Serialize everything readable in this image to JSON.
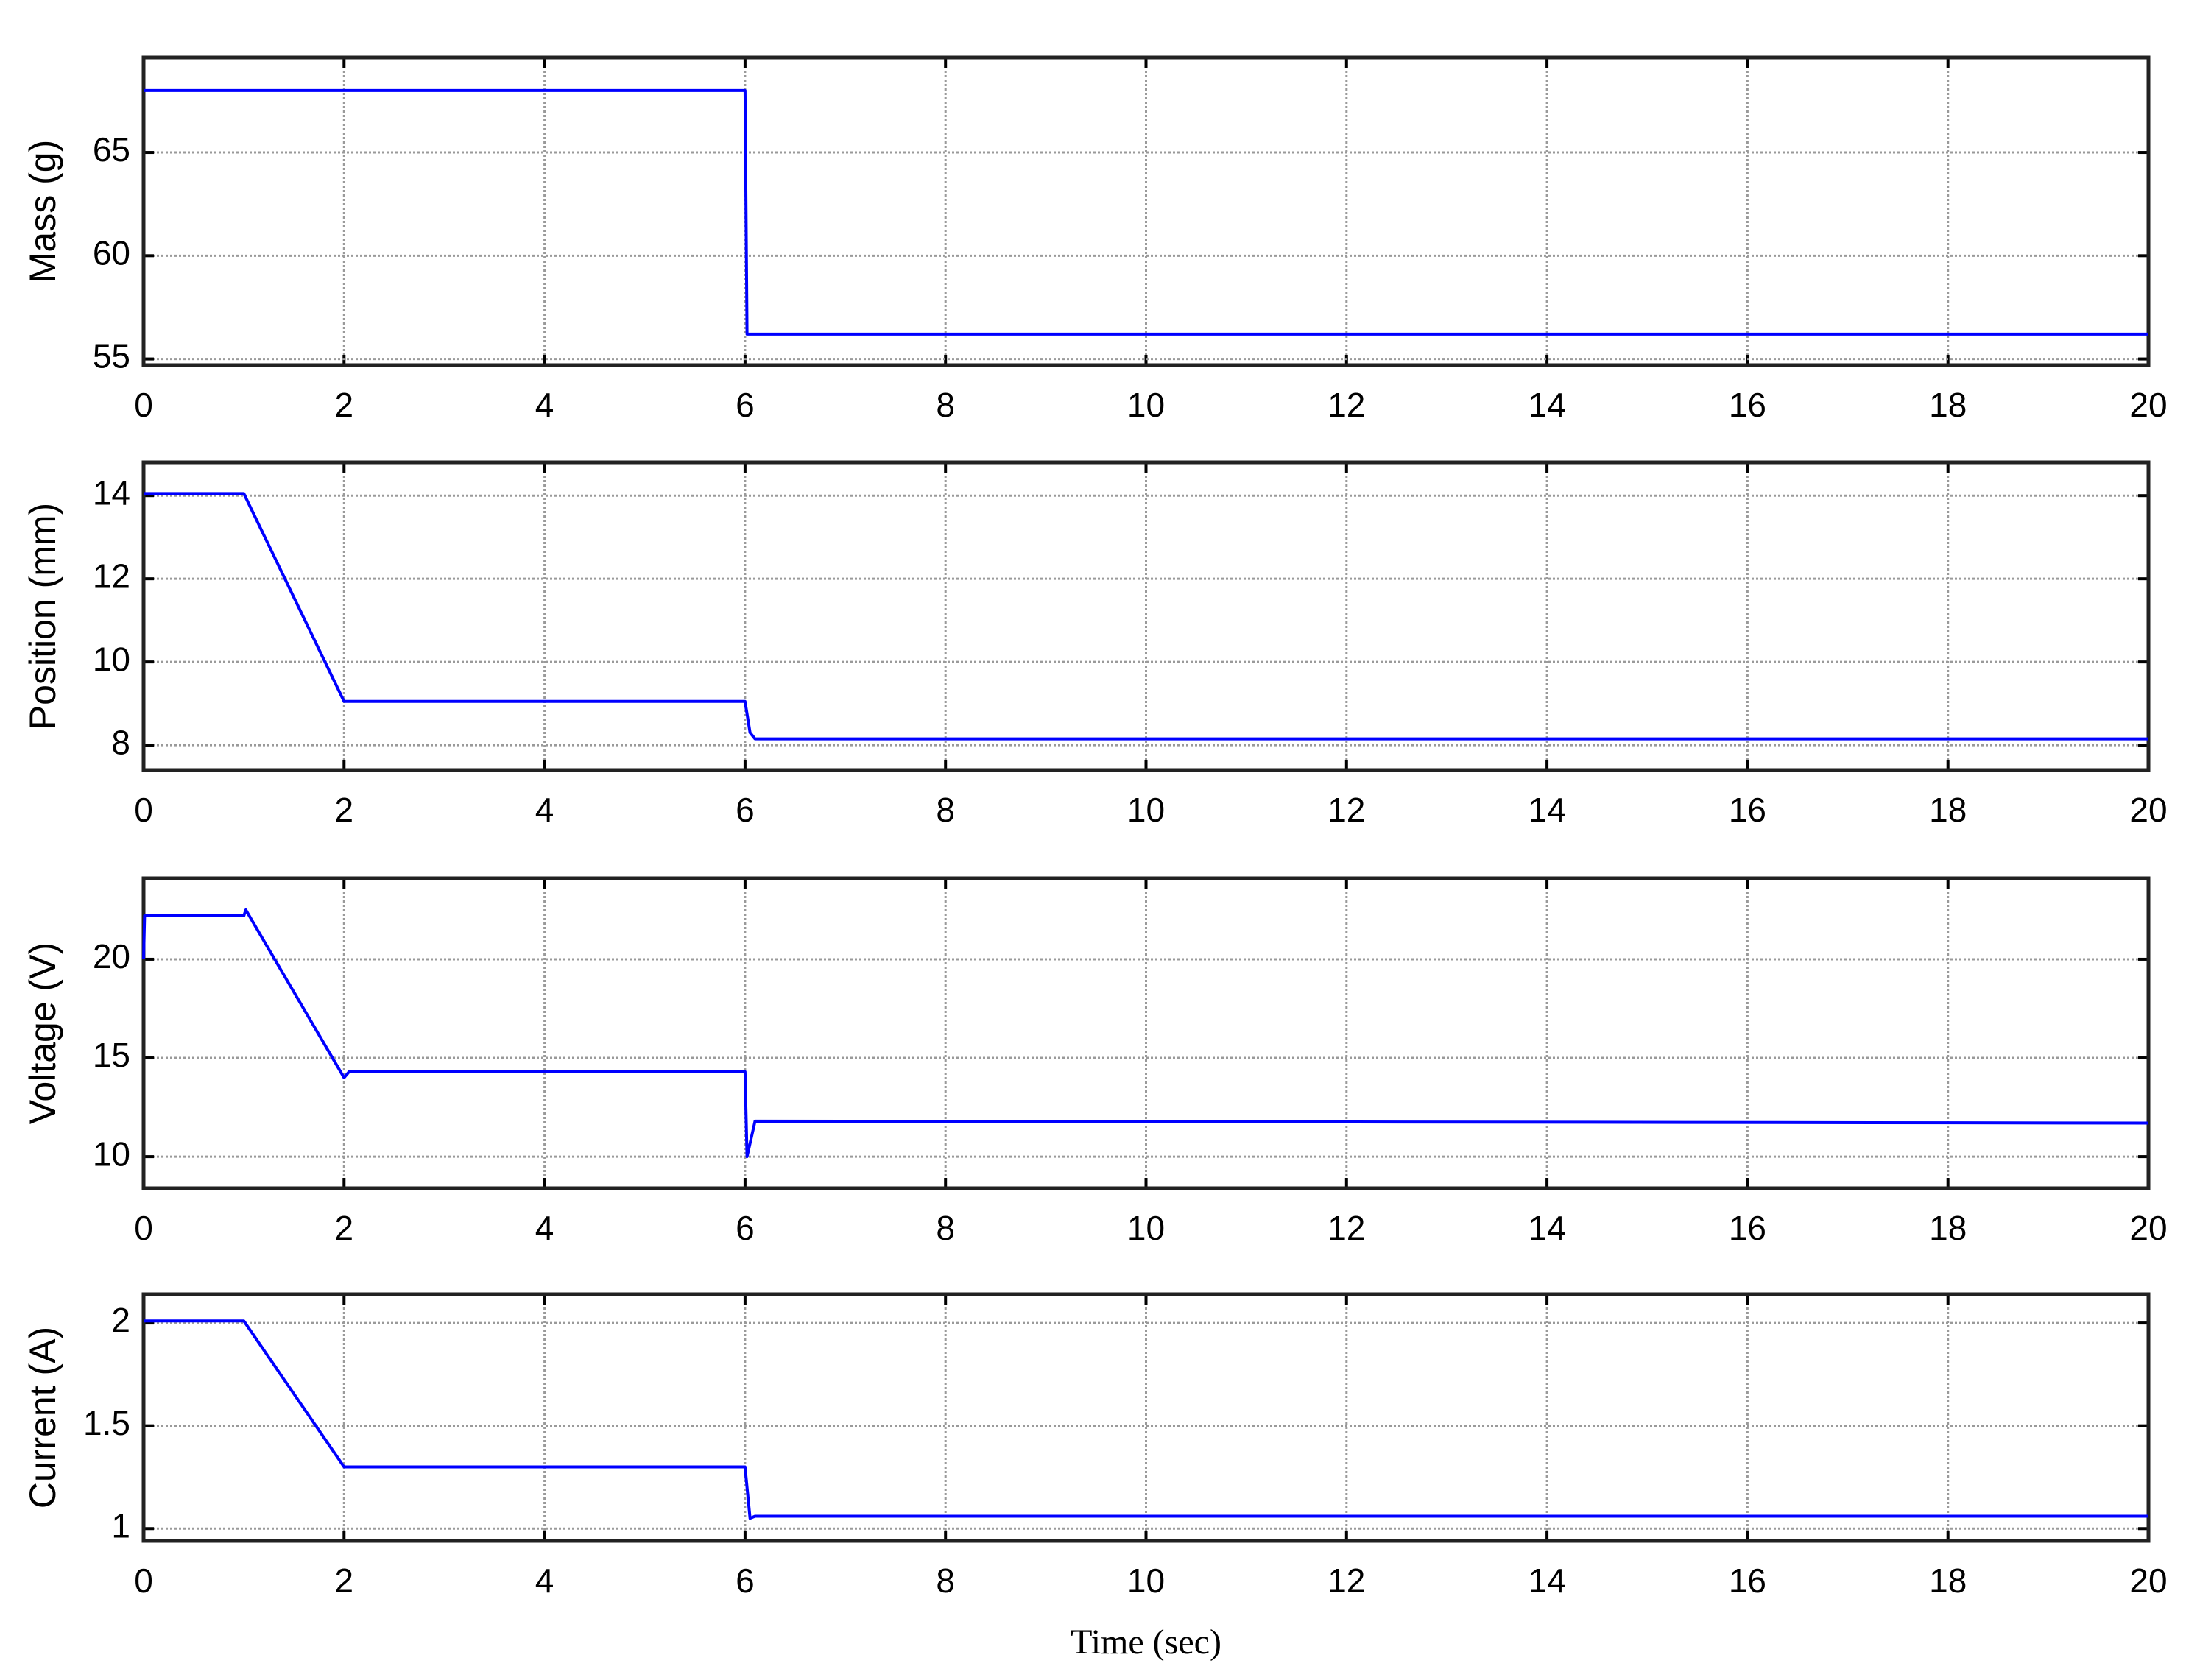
{
  "chart_data": [
    {
      "type": "line",
      "ylabel": "Mass (g)",
      "x": [
        0,
        6,
        6.02,
        20
      ],
      "series": [
        {
          "color": "#0000ff",
          "values": [
            68,
            68,
            56.2,
            56.2
          ]
        }
      ],
      "xlim": [
        0,
        20
      ],
      "xticks": [
        0,
        2,
        4,
        6,
        8,
        10,
        12,
        14,
        16,
        18,
        20
      ],
      "ylim": [
        54.7,
        69.6
      ],
      "yticks": [
        55,
        60,
        65
      ],
      "grid": true
    },
    {
      "type": "line",
      "ylabel": "Position (mm)",
      "x": [
        0,
        1,
        2,
        6,
        6.05,
        6.1,
        20
      ],
      "series": [
        {
          "color": "#0000ff",
          "values": [
            14.05,
            14.05,
            9.05,
            9.05,
            8.3,
            8.15,
            8.15
          ]
        }
      ],
      "xlim": [
        0,
        20
      ],
      "xticks": [
        0,
        2,
        4,
        6,
        8,
        10,
        12,
        14,
        16,
        18,
        20
      ],
      "ylim": [
        7.4,
        14.8
      ],
      "yticks": [
        8,
        10,
        12,
        14
      ],
      "grid": true
    },
    {
      "type": "line",
      "ylabel": "Voltage (V)",
      "x": [
        0,
        0.01,
        1,
        1.02,
        1.1,
        2,
        2.05,
        6,
        6.02,
        6.1,
        20
      ],
      "series": [
        {
          "color": "#0000ff",
          "values": [
            20,
            22.2,
            22.2,
            22.5,
            21.8,
            14.0,
            14.3,
            14.3,
            10,
            11.8,
            11.7
          ]
        }
      ],
      "xlim": [
        0,
        20
      ],
      "xticks": [
        0,
        2,
        4,
        6,
        8,
        10,
        12,
        14,
        16,
        18,
        20
      ],
      "ylim": [
        8.4,
        24.1
      ],
      "yticks": [
        10,
        15,
        20
      ],
      "grid": true
    },
    {
      "type": "line",
      "ylabel": "Current (A)",
      "xlabel": "Time (sec)",
      "x": [
        0,
        1,
        2,
        6,
        6.05,
        6.1,
        20
      ],
      "series": [
        {
          "color": "#0000ff",
          "values": [
            2.01,
            2.01,
            1.3,
            1.3,
            1.05,
            1.06,
            1.06
          ]
        }
      ],
      "xlim": [
        0,
        20
      ],
      "xticks": [
        0,
        2,
        4,
        6,
        8,
        10,
        12,
        14,
        16,
        18,
        20
      ],
      "ylim": [
        0.94,
        2.14
      ],
      "yticks": [
        1,
        1.5,
        2
      ],
      "grid": true
    }
  ]
}
